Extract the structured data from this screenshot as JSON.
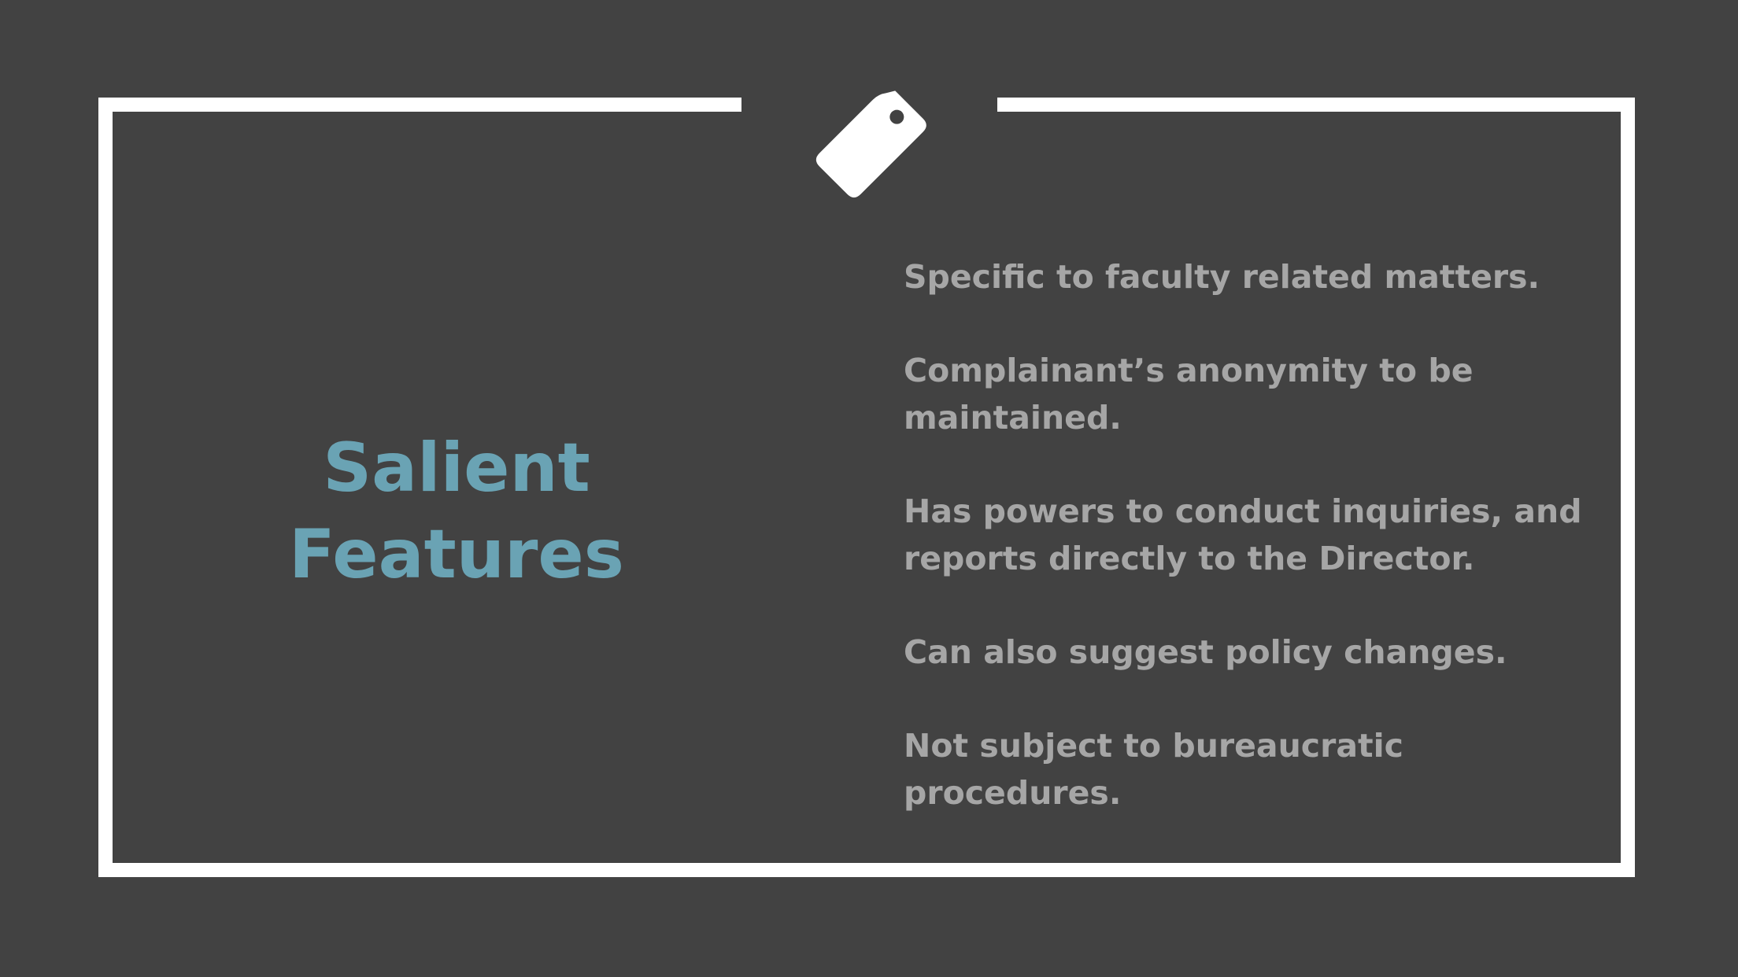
{
  "slide": {
    "title_line1": "Salient",
    "title_line2": "Features",
    "icon": "price-tag-icon",
    "features": [
      "Specific to faculty related matters.",
      "Complainant’s anonymity to be maintained.",
      "Has powers to conduct inquiries, and reports directly to the Director.",
      "Can also suggest policy changes.",
      "Not subject to bureaucratic procedures."
    ]
  },
  "colors": {
    "background": "#424242",
    "frame": "#ffffff",
    "title": "#6aa3b4",
    "body_text": "#a6a6a6"
  }
}
